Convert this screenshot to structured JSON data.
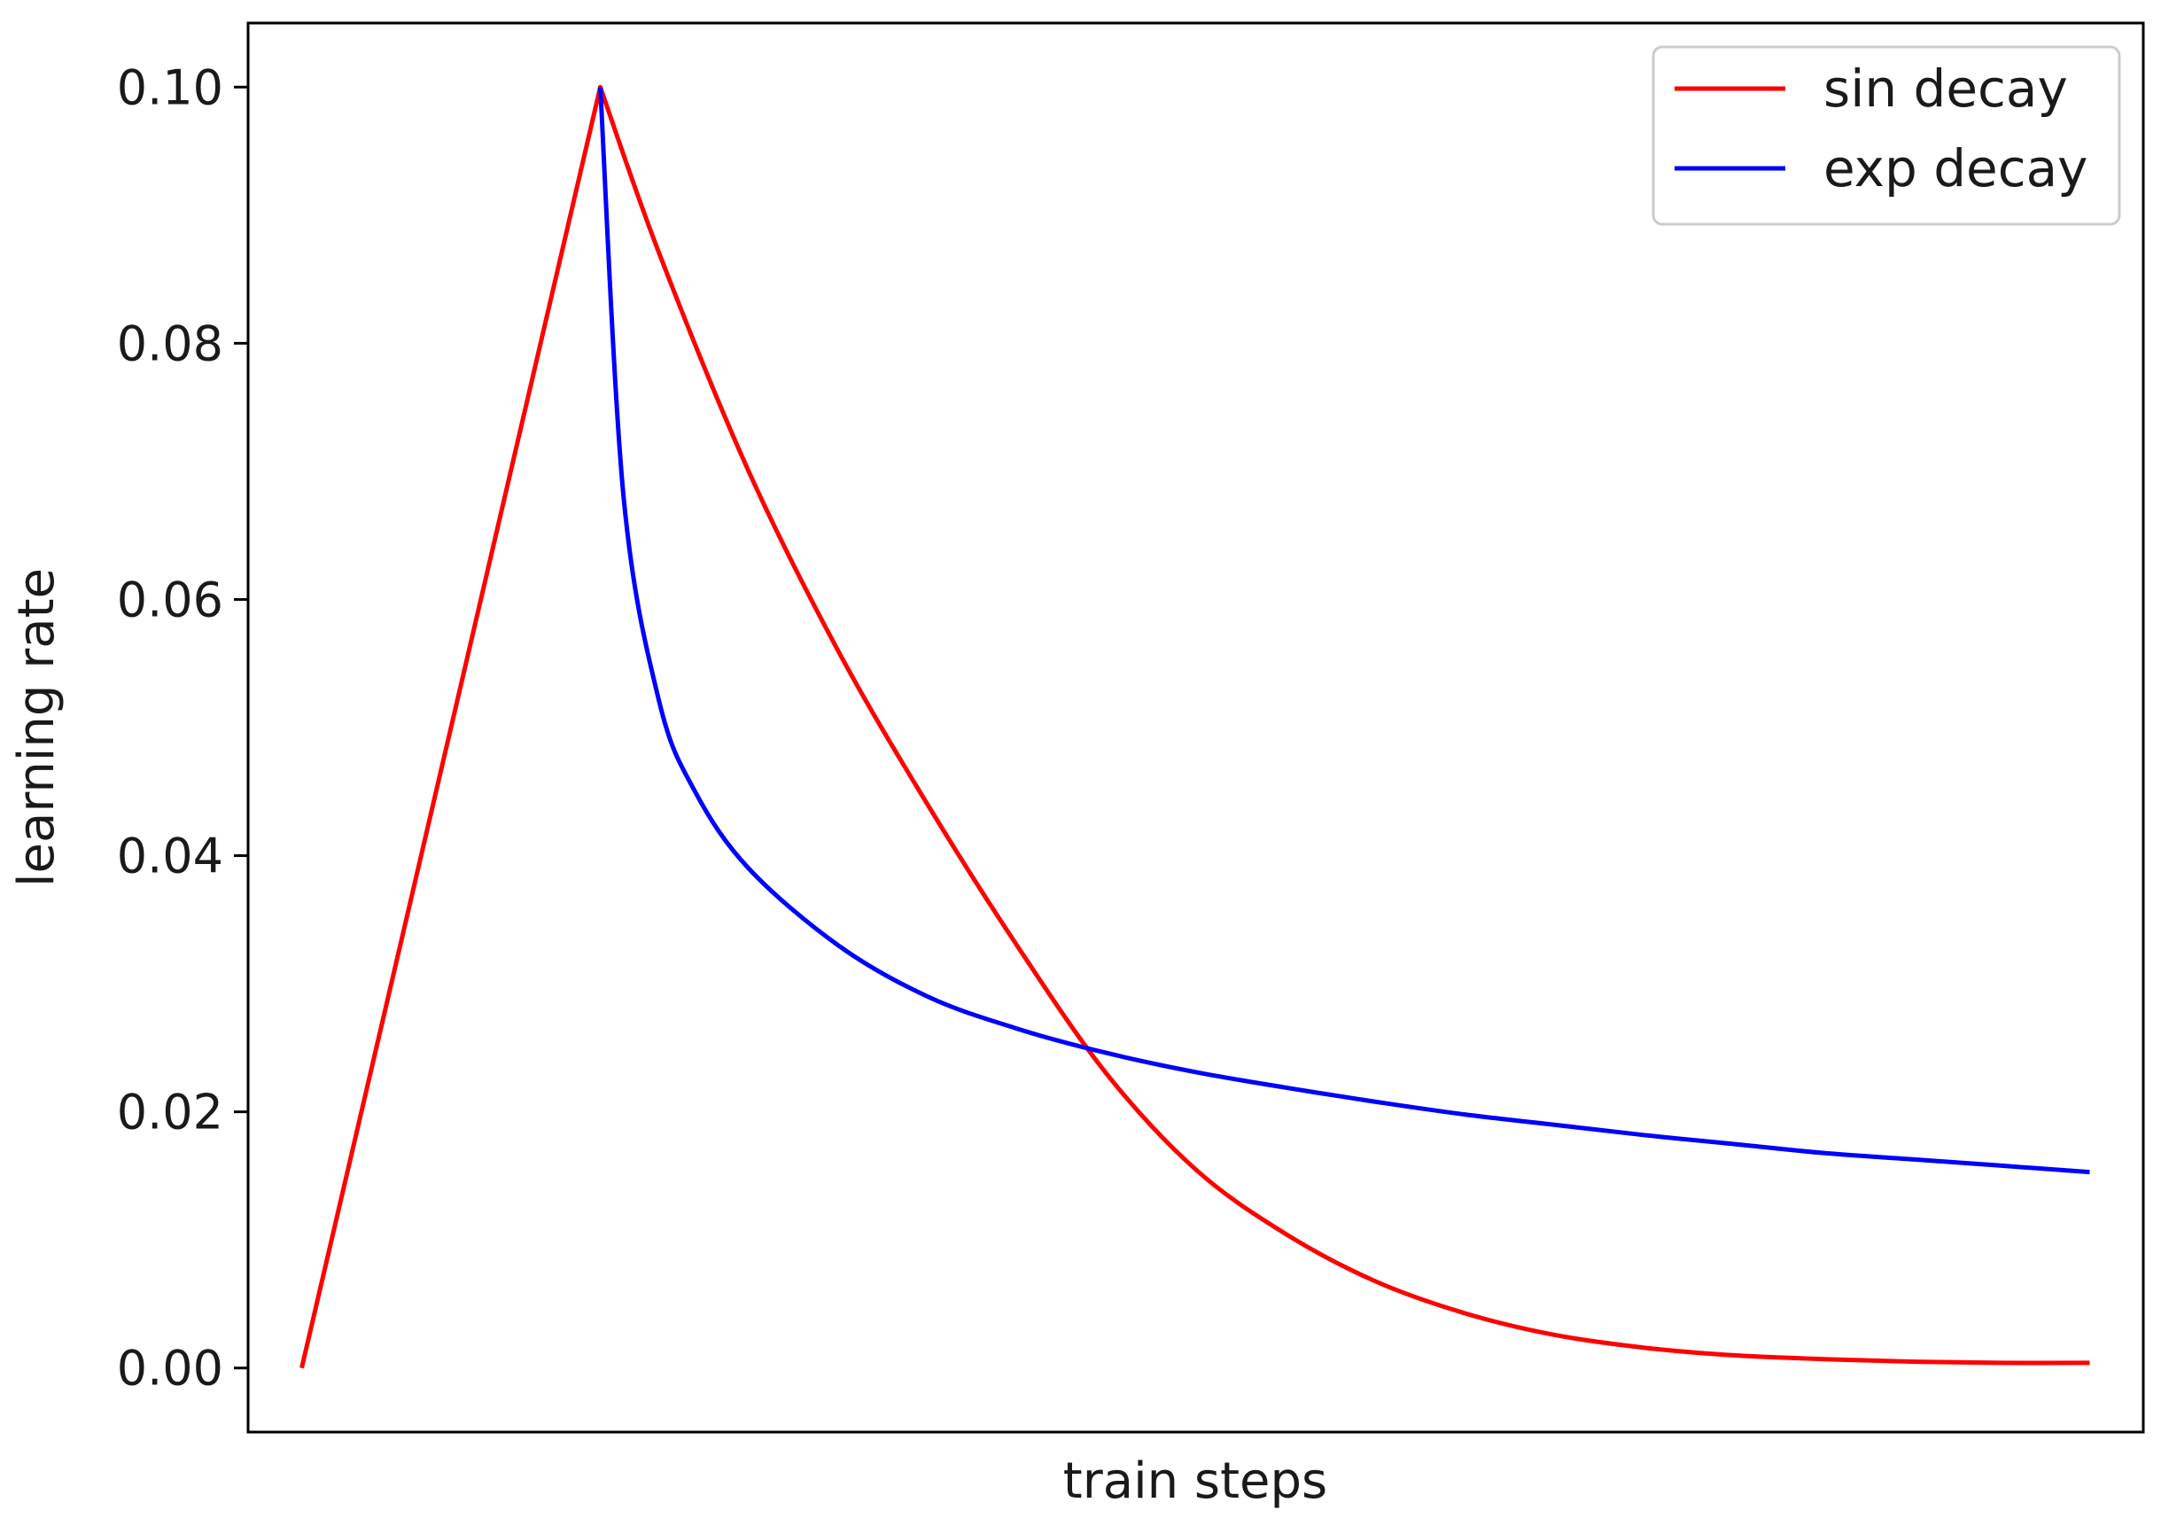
{
  "chart_data": {
    "type": "line",
    "title": "",
    "xlabel": "train steps",
    "ylabel": "learning rate",
    "xlim": [
      -0.03,
      1.03
    ],
    "ylim": [
      -0.005,
      0.105
    ],
    "x_ticks_visible": false,
    "yticks": [
      0.0,
      0.02,
      0.04,
      0.06,
      0.08,
      0.1
    ],
    "ytick_labels": [
      "0.00",
      "0.02",
      "0.04",
      "0.06",
      "0.08",
      "0.10"
    ],
    "grid": false,
    "legend": {
      "placement": "top-right",
      "entries": [
        "sin decay",
        "exp decay"
      ]
    },
    "series": [
      {
        "name": "sin decay",
        "color": "#ff0000",
        "x": [
          0.0,
          0.167,
          0.2,
          0.25,
          0.3,
          0.35,
          0.4,
          0.45,
          0.5,
          0.55,
          0.6,
          0.65,
          0.7,
          0.75,
          0.8,
          0.85,
          0.9,
          0.95,
          1.0
        ],
        "y": [
          0.0,
          0.1,
          0.087,
          0.07,
          0.056,
          0.044,
          0.033,
          0.023,
          0.0155,
          0.0105,
          0.0068,
          0.0043,
          0.0026,
          0.0016,
          0.001,
          0.0007,
          0.0005,
          0.0004,
          0.0004
        ]
      },
      {
        "name": "exp decay",
        "color": "#0000ff",
        "x": [
          0.167,
          0.18,
          0.2,
          0.22,
          0.25,
          0.3,
          0.35,
          0.4,
          0.45,
          0.5,
          0.55,
          0.6,
          0.65,
          0.7,
          0.75,
          0.8,
          0.85,
          0.9,
          0.95,
          1.0
        ],
        "y": [
          0.1,
          0.068,
          0.052,
          0.045,
          0.039,
          0.033,
          0.029,
          0.0265,
          0.0246,
          0.0231,
          0.0219,
          0.0208,
          0.0198,
          0.019,
          0.0182,
          0.0175,
          0.0168,
          0.0163,
          0.0158,
          0.0153
        ]
      }
    ]
  }
}
